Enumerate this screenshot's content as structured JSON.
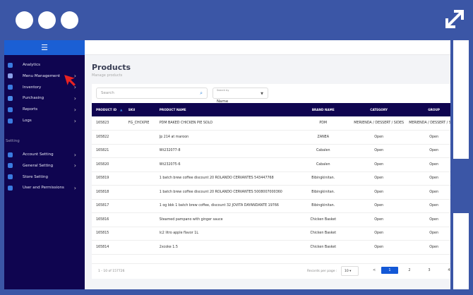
{
  "window_controls": [
    "circle",
    "circle",
    "circle"
  ],
  "expand_icon": "expand-arrows-icon",
  "sidebar": {
    "menu_icon": "hamburger-icon",
    "items": [
      {
        "label": "Analytics",
        "chevron": false
      },
      {
        "label": "Menu Management",
        "chevron": true
      },
      {
        "label": "Inventory",
        "chevron": true
      },
      {
        "label": "Purchasing",
        "chevron": true
      },
      {
        "label": "Reports",
        "chevron": true
      },
      {
        "label": "Logs",
        "chevron": true
      }
    ],
    "section_label": "Setting",
    "settings": [
      {
        "label": "Account Setting",
        "chevron": true
      },
      {
        "label": "General Setting",
        "chevron": true
      },
      {
        "label": "Store Setting",
        "chevron": false
      },
      {
        "label": "User and Permissions",
        "chevron": true
      }
    ]
  },
  "page": {
    "title": "Products",
    "subtitle": "Manage products"
  },
  "search": {
    "placeholder": "Search",
    "search_by_label": "Search by",
    "search_by_value": "Name"
  },
  "table": {
    "headers": [
      "PRODUCT ID",
      "SKU",
      "PRODUCT NAME",
      "BRAND NAME",
      "CATEGORY",
      "GROUP"
    ],
    "sort_indicator": "▲",
    "rows": [
      [
        "165823",
        "FG_CHCKPIE",
        "PDM BAKED CHICKEN PIE SOLO",
        "PDM",
        "MERIENDA / DESSERT / SIDES",
        "MERIENDA / DESSERT / SIDES"
      ],
      [
        "165822",
        "",
        "Jp 214 at maroon",
        "ZANEA",
        "Open",
        "Open"
      ],
      [
        "165821",
        "",
        "Wt232077-8",
        "Cabalen",
        "Open",
        "Open"
      ],
      [
        "165820",
        "",
        "Wt232075-6",
        "Cabalen",
        "Open",
        "Open"
      ],
      [
        "165819",
        "",
        "1 batch brew coffee discount 20 ROLANDO CERVANTES 543447768",
        "Bibingkinitan.",
        "Open",
        "Open"
      ],
      [
        "165818",
        "",
        "1 batch brew coffee discount 20 ROLANDO CERVANTES 5008007000360",
        "Bibingkinitan.",
        "Open",
        "Open"
      ],
      [
        "165817",
        "",
        "1 og bbk 1 batch brew coffee, discount 32 JOVITA DAYANDANTE 19766",
        "Bibingkinitan.",
        "Open",
        "Open"
      ],
      [
        "165816",
        "",
        "Steamed pampano with ginger sauce",
        "Chicken Basket",
        "Open",
        "Open"
      ],
      [
        "165815",
        "",
        "lc2 litro apple flavor 1L",
        "Chicken Basket",
        "Open",
        "Open"
      ],
      [
        "165814",
        "",
        "2xcoke 1.5",
        "Chicken Basket",
        "Open",
        "Open"
      ]
    ]
  },
  "footer": {
    "count": "1 - 10 of 157726",
    "records_label": "Records per page :",
    "records_value": "10",
    "prev": "<",
    "pages": [
      "1",
      "2",
      "3",
      "4"
    ],
    "active_page": "1"
  },
  "colors": {
    "sidebar": "#0f0550",
    "accent": "#1358d6",
    "frame": "#3b56a6"
  }
}
